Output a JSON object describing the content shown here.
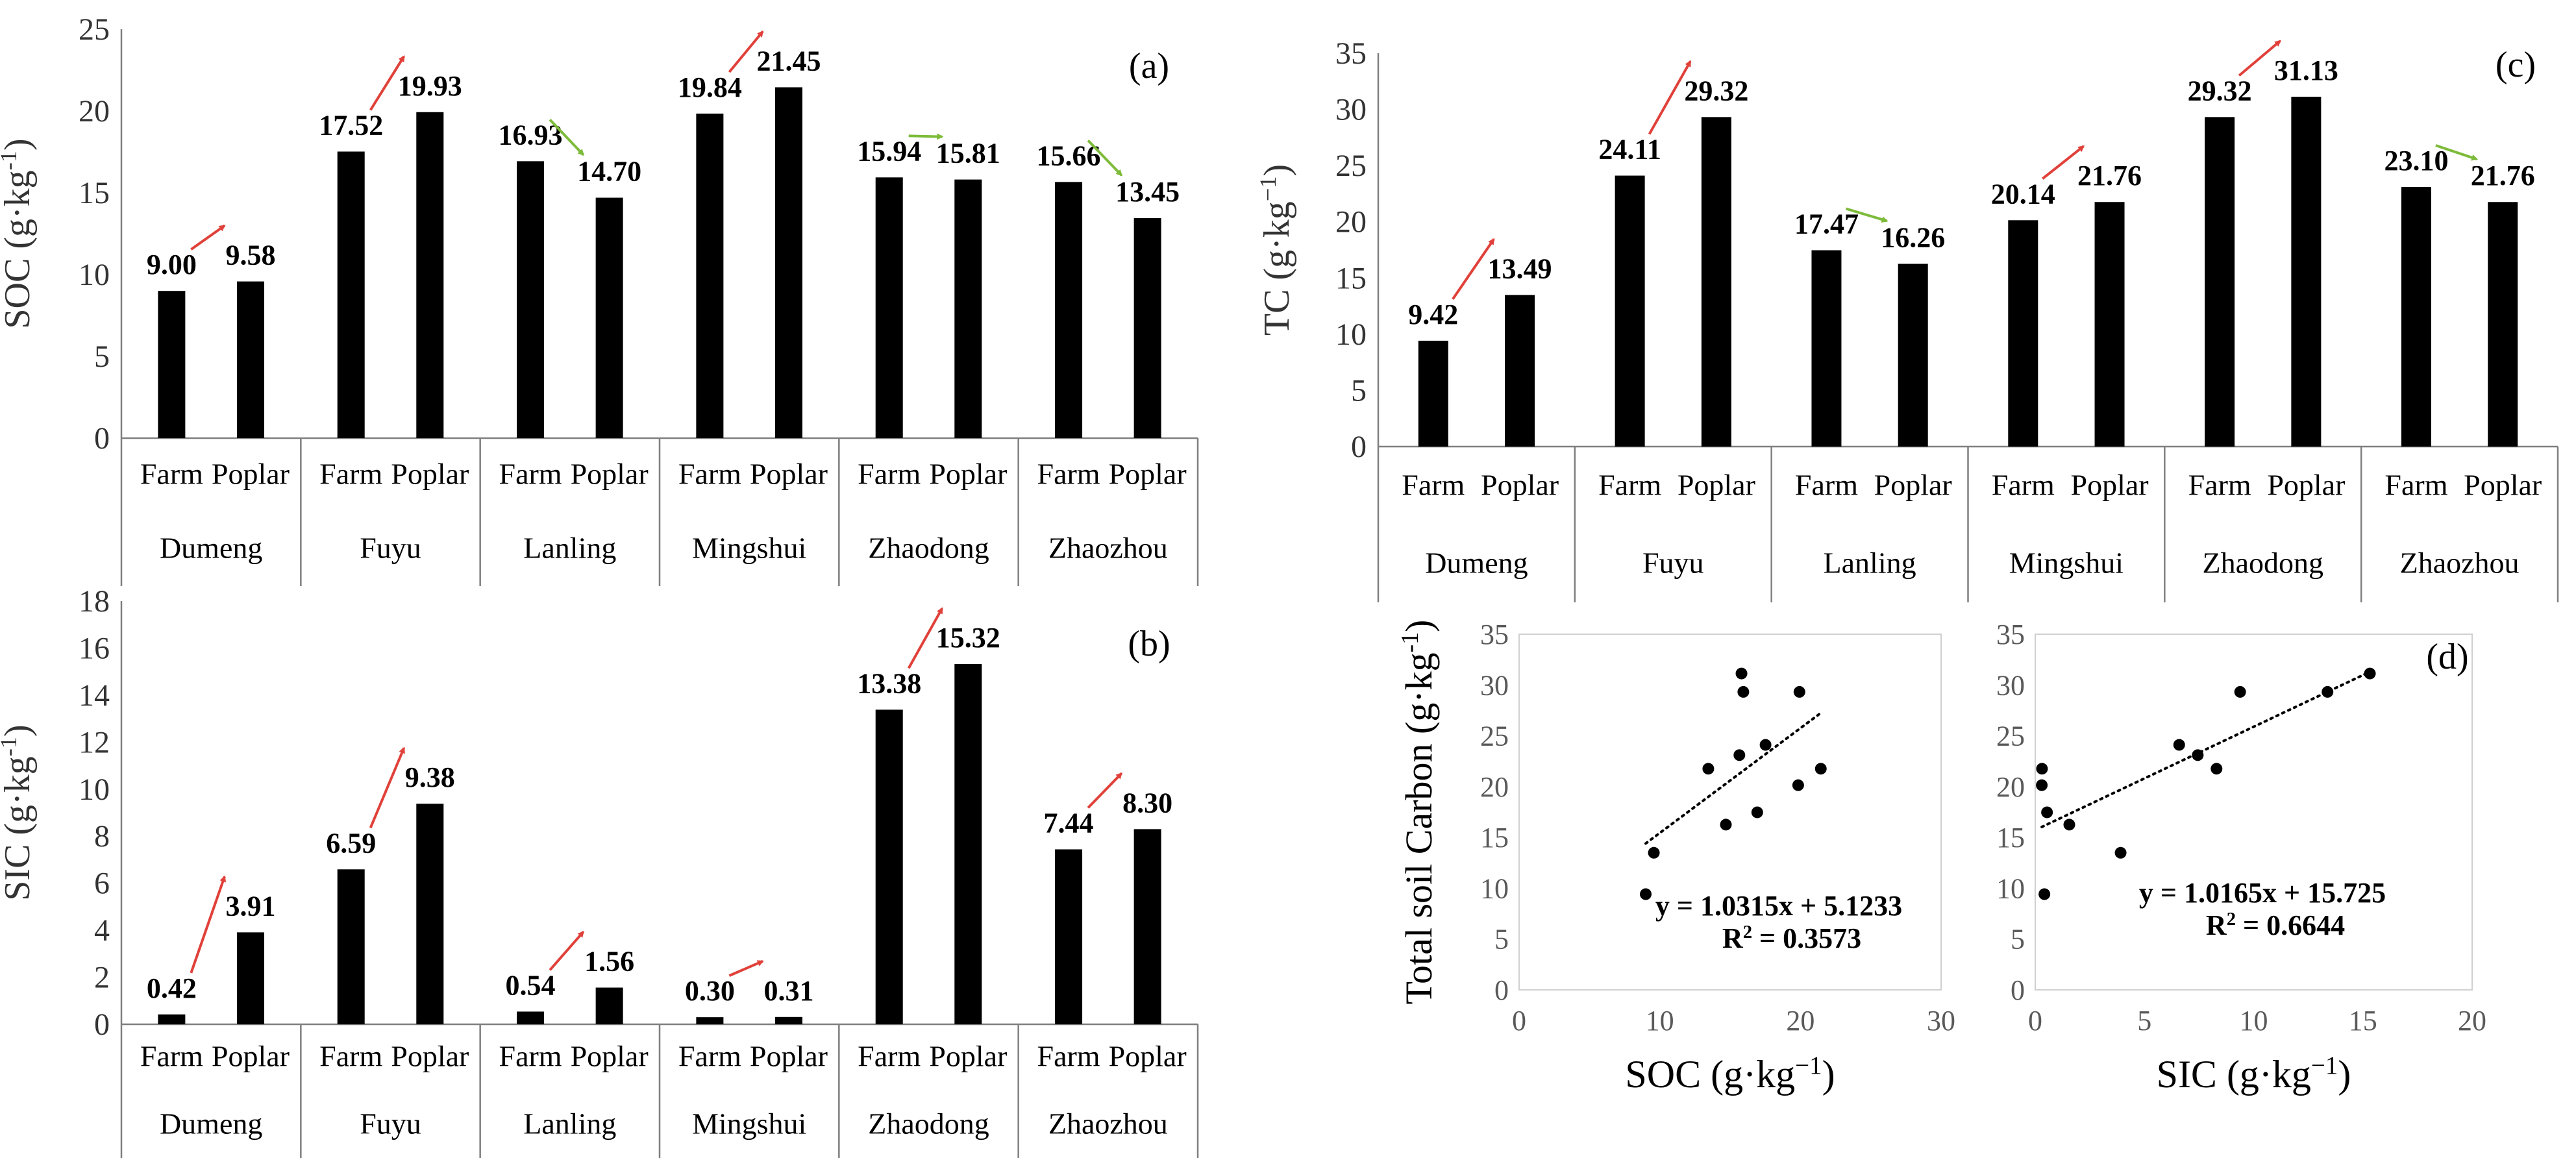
{
  "colors": {
    "bar": "#000000",
    "increase_arrow": "#e0413a",
    "decrease_arrow": "#7dbb3a",
    "axis": "#7f7f7f"
  },
  "chart_data": [
    {
      "id": "a",
      "type": "bar",
      "panel_label": "(a)",
      "ylabel_main": "SOC (g·kg",
      "ylabel_sup": "-1",
      "ylabel_end": ")",
      "ylim": [
        0,
        25
      ],
      "ytick_step": 5,
      "sites": [
        "Dumeng",
        "Fuyu",
        "Lanling",
        "Mingshui",
        "Zhaodong",
        "Zhaozhou"
      ],
      "sub_categories": [
        "Farm",
        "Poplar"
      ],
      "series": [
        {
          "name": "Farm",
          "values": [
            9.0,
            17.52,
            16.93,
            19.84,
            15.94,
            15.66
          ],
          "labels": [
            "9.00",
            "17.52",
            "16.93",
            "19.84",
            "15.94",
            "15.66"
          ]
        },
        {
          "name": "Poplar",
          "values": [
            9.58,
            19.93,
            14.7,
            21.45,
            15.81,
            13.45
          ],
          "labels": [
            "9.58",
            "19.93",
            "14.70",
            "21.45",
            "15.81",
            "13.45"
          ]
        }
      ]
    },
    {
      "id": "b",
      "type": "bar",
      "panel_label": "(b)",
      "ylabel_main": "SIC (g·kg",
      "ylabel_sup": "-1",
      "ylabel_end": ")",
      "ylim": [
        0,
        18
      ],
      "ytick_step": 2,
      "sites": [
        "Dumeng",
        "Fuyu",
        "Lanling",
        "Mingshui",
        "Zhaodong",
        "Zhaozhou"
      ],
      "sub_categories": [
        "Farm",
        "Poplar"
      ],
      "series": [
        {
          "name": "Farm",
          "values": [
            0.42,
            6.59,
            0.54,
            0.3,
            13.38,
            7.44
          ],
          "labels": [
            "0.42",
            "6.59",
            "0.54",
            "0.30",
            "13.38",
            "7.44"
          ]
        },
        {
          "name": "Poplar",
          "values": [
            3.91,
            9.38,
            1.56,
            0.31,
            15.32,
            8.3
          ],
          "labels": [
            "3.91",
            "9.38",
            "1.56",
            "0.31",
            "15.32",
            "8.30"
          ]
        }
      ]
    },
    {
      "id": "c",
      "type": "bar",
      "panel_label": "(c)",
      "ylabel_main": "TC (g·kg",
      "ylabel_sup": "−1",
      "ylabel_end": ")",
      "ylim": [
        0,
        35
      ],
      "ytick_step": 5,
      "sites": [
        "Dumeng",
        "Fuyu",
        "Lanling",
        "Mingshui",
        "Zhaodong",
        "Zhaozhou"
      ],
      "sub_categories": [
        "Farm",
        "Poplar"
      ],
      "series": [
        {
          "name": "Farm",
          "values": [
            9.42,
            24.11,
            17.47,
            20.14,
            29.32,
            23.1
          ],
          "labels": [
            "9.42",
            "24.11",
            "17.47",
            "20.14",
            "29.32",
            "23.10"
          ]
        },
        {
          "name": "Poplar",
          "values": [
            13.49,
            29.32,
            16.26,
            21.76,
            31.13,
            21.76
          ],
          "labels": [
            "13.49",
            "29.32",
            "16.26",
            "21.76",
            "31.13",
            "21.76"
          ]
        }
      ]
    },
    {
      "id": "d1",
      "type": "scatter",
      "xlabel_main": "SOC  (g·kg",
      "xlabel_sup": "−1",
      "xlabel_end": ")",
      "ylabel_main": "Total soil Carbon  (g·kg",
      "ylabel_sup": "-1",
      "ylabel_end": ")",
      "xlim": [
        0,
        30
      ],
      "xtick_step": 10,
      "ylim": [
        0,
        35
      ],
      "ytick_step": 5,
      "x": [
        9.0,
        9.58,
        17.52,
        19.93,
        16.93,
        14.7,
        19.84,
        21.45,
        15.94,
        15.81,
        15.66,
        13.45
      ],
      "y": [
        9.42,
        13.49,
        24.11,
        29.32,
        17.47,
        16.26,
        20.14,
        21.76,
        29.32,
        31.13,
        23.1,
        21.76
      ],
      "trend": {
        "slope": 1.0315,
        "intercept": 5.1233,
        "x_from": 9.0,
        "x_to": 21.45
      },
      "equation": "y = 1.0315x + 5.1233",
      "r2_prefix": "R",
      "r2_sup": "2",
      "r2_value": " = 0.3573"
    },
    {
      "id": "d2",
      "type": "scatter",
      "panel_label": "(d)",
      "xlabel_main": "SIC (g·kg",
      "xlabel_sup": "−1",
      "xlabel_end": ")",
      "xlim": [
        0,
        20
      ],
      "xtick_step": 5,
      "ylim": [
        0,
        35
      ],
      "ytick_step": 5,
      "x": [
        0.42,
        3.91,
        6.59,
        9.38,
        0.54,
        1.56,
        0.3,
        0.31,
        13.38,
        15.32,
        7.44,
        8.3
      ],
      "y": [
        9.42,
        13.49,
        24.11,
        29.32,
        17.47,
        16.26,
        20.14,
        21.76,
        29.32,
        31.13,
        23.1,
        21.76
      ],
      "trend": {
        "slope": 1.0165,
        "intercept": 15.725,
        "x_from": 0.3,
        "x_to": 15.32
      },
      "equation": "y = 1.0165x + 15.725",
      "r2_prefix": "R",
      "r2_sup": "2",
      "r2_value": " = 0.6644"
    }
  ]
}
